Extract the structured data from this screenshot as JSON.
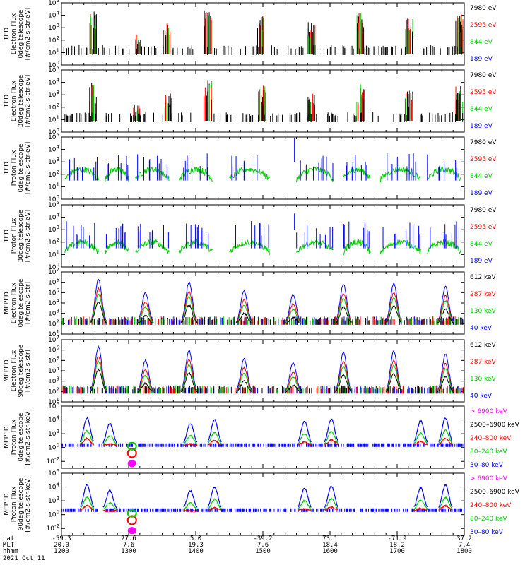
{
  "chart_data": {
    "type": "line",
    "date": "2021 Oct 11",
    "x_axis": {
      "rows": [
        {
          "label": "Lat",
          "values": [
            "-59.3",
            "27.6",
            "5.0",
            "-39.2",
            "73.1",
            "-71.9",
            "37.2"
          ]
        },
        {
          "label": "MLT",
          "values": [
            "20.0",
            "7.6",
            "19.3",
            "7.6",
            "18.4",
            "18.2",
            "7.4"
          ]
        },
        {
          "label": "hhmm",
          "values": [
            "1200",
            "1300",
            "1400",
            "1500",
            "1600",
            "1700",
            "1800"
          ]
        }
      ],
      "time_range_hours": [
        12,
        18
      ]
    },
    "panels": [
      {
        "ylabel": [
          "TED",
          "Electron Flux",
          "0deg telescope",
          "[#/cm2-s-str-eV]"
        ],
        "ylim_exp": [
          0,
          5
        ],
        "ytick_labels": [
          "10^0",
          "10^1",
          "10^2",
          "10^3",
          "10^4",
          "10^5"
        ],
        "series": [
          {
            "name": "7980 eV",
            "color": "#000000"
          },
          {
            "name": "2595 eV",
            "color": "#ff0000"
          },
          {
            "name": "844 eV",
            "color": "#00cc00"
          },
          {
            "name": "189 eV",
            "color": "#0000ff"
          }
        ]
      },
      {
        "ylabel": [
          "TED",
          "Electron Flux",
          "30deg telescope",
          "[#/cm2-s-str-eV]"
        ],
        "ylim_exp": [
          0,
          5
        ],
        "ytick_labels": [
          "10^0",
          "10^1",
          "10^2",
          "10^3",
          "10^4",
          "10^5"
        ],
        "series": [
          {
            "name": "7980 eV",
            "color": "#000000"
          },
          {
            "name": "2595 eV",
            "color": "#ff0000"
          },
          {
            "name": "844 eV",
            "color": "#00cc00"
          },
          {
            "name": "189 eV",
            "color": "#0000ff"
          }
        ]
      },
      {
        "ylabel": [
          "TED",
          "Proton Flux",
          "0deg telescope",
          "[#/cm2-s-str-eV]"
        ],
        "ylim_exp": [
          0,
          5
        ],
        "ytick_labels": [
          "10^0",
          "10^1",
          "10^2",
          "10^3",
          "10^4",
          "10^5"
        ],
        "series": [
          {
            "name": "7980 eV",
            "color": "#000000"
          },
          {
            "name": "2595 eV",
            "color": "#ff0000"
          },
          {
            "name": "844 eV",
            "color": "#00cc00"
          },
          {
            "name": "189 eV",
            "color": "#0000ff"
          }
        ]
      },
      {
        "ylabel": [
          "TED",
          "Proton Flux",
          "30deg telescope",
          "[#/cm2-s-str-eV]"
        ],
        "ylim_exp": [
          0,
          5
        ],
        "ytick_labels": [
          "10^0",
          "10^1",
          "10^2",
          "10^3",
          "10^4",
          "10^5"
        ],
        "series": [
          {
            "name": "7980 eV",
            "color": "#000000"
          },
          {
            "name": "2595 eV",
            "color": "#ff0000"
          },
          {
            "name": "844 eV",
            "color": "#00cc00"
          },
          {
            "name": "189 eV",
            "color": "#0000ff"
          }
        ]
      },
      {
        "ylabel": [
          "MEPED",
          "Electron Flux",
          "0deg telescope",
          "[#/cm2-s-str]"
        ],
        "ylim_exp": [
          1,
          7
        ],
        "ytick_labels": [
          "10^1",
          "10^2",
          "10^3",
          "10^4",
          "10^5",
          "10^6",
          "10^7"
        ],
        "series": [
          {
            "name": "612 keV",
            "color": "#000000"
          },
          {
            "name": "287 keV",
            "color": "#ff0000"
          },
          {
            "name": "130 keV",
            "color": "#00cc00"
          },
          {
            "name": "40 keV",
            "color": "#0000ff"
          }
        ]
      },
      {
        "ylabel": [
          "MEPED",
          "Electron Flux",
          "90deg telescope",
          "[#/cm2-s-str]"
        ],
        "ylim_exp": [
          1,
          7
        ],
        "ytick_labels": [
          "10^1",
          "10^2",
          "10^3",
          "10^4",
          "10^5",
          "10^6",
          "10^7"
        ],
        "series": [
          {
            "name": "612 keV",
            "color": "#000000"
          },
          {
            "name": "287 keV",
            "color": "#ff0000"
          },
          {
            "name": "130 keV",
            "color": "#00cc00"
          },
          {
            "name": "40 keV",
            "color": "#0000ff"
          }
        ]
      },
      {
        "ylabel": [
          "MEPED",
          "Proton Flux",
          "0deg telescope",
          "[#/cm2-s-str-keV]"
        ],
        "ylim_exp": [
          -3,
          6
        ],
        "ytick_labels": [
          "10^6",
          "10^4",
          "10^2",
          "10^0",
          "10^-2"
        ],
        "series": [
          {
            "name": "> 6900 keV",
            "color": "#ff00ff"
          },
          {
            "name": "2500–6900 keV",
            "color": "#000000"
          },
          {
            "name": "240–800 keV",
            "color": "#ff0000"
          },
          {
            "name": "80–240 keV",
            "color": "#00cc00"
          },
          {
            "name": "30–80 keV",
            "color": "#0000ff"
          }
        ]
      },
      {
        "ylabel": [
          "MEPED",
          "Proton Flux",
          "90deg telescope",
          "[#/cm2-s-str-keV]"
        ],
        "ylim_exp": [
          -3,
          6
        ],
        "ytick_labels": [
          "10^6",
          "10^4",
          "10^2",
          "10^0",
          "10^-2"
        ],
        "series": [
          {
            "name": "> 6900 keV",
            "color": "#ff00ff"
          },
          {
            "name": "2500–6900 keV",
            "color": "#000000"
          },
          {
            "name": "240–800 keV",
            "color": "#ff0000"
          },
          {
            "name": "80–240 keV",
            "color": "#00cc00"
          },
          {
            "name": "30–80 keV",
            "color": "#0000ff"
          }
        ]
      }
    ],
    "ted_electron_bursts": [
      {
        "t": 12.47,
        "peak_exp": 4.3
      },
      {
        "t": 13.12,
        "peak_exp": 2.6
      },
      {
        "t": 13.58,
        "peak_exp": 3.4
      },
      {
        "t": 14.18,
        "peak_exp": 4.5
      },
      {
        "t": 14.98,
        "peak_exp": 4.1
      },
      {
        "t": 15.72,
        "peak_exp": 3.6
      },
      {
        "t": 16.45,
        "peak_exp": 4.2
      },
      {
        "t": 17.18,
        "peak_exp": 3.8
      },
      {
        "t": 17.93,
        "peak_exp": 4.1
      }
    ],
    "meped_electron_peaks": [
      {
        "t": 12.55,
        "peak_exp": 6.3
      },
      {
        "t": 13.25,
        "peak_exp": 5.0
      },
      {
        "t": 13.9,
        "peak_exp": 6.0
      },
      {
        "t": 14.72,
        "peak_exp": 5.2
      },
      {
        "t": 15.45,
        "peak_exp": 4.8
      },
      {
        "t": 16.2,
        "peak_exp": 5.8
      },
      {
        "t": 16.95,
        "peak_exp": 5.9
      },
      {
        "t": 17.72,
        "peak_exp": 5.6
      }
    ],
    "meped_proton_passes": [
      {
        "t": 12.38,
        "peak_exp": 4.3
      },
      {
        "t": 12.72,
        "peak_exp": 3.5
      },
      {
        "t": 13.92,
        "peak_exp": 3.5
      },
      {
        "t": 14.28,
        "peak_exp": 4.0
      },
      {
        "t": 15.62,
        "peak_exp": 3.8
      },
      {
        "t": 16.02,
        "peak_exp": 4.1
      },
      {
        "t": 17.35,
        "peak_exp": 3.9
      },
      {
        "t": 17.72,
        "peak_exp": 4.3
      }
    ],
    "saa_pass_t": 13.05
  }
}
